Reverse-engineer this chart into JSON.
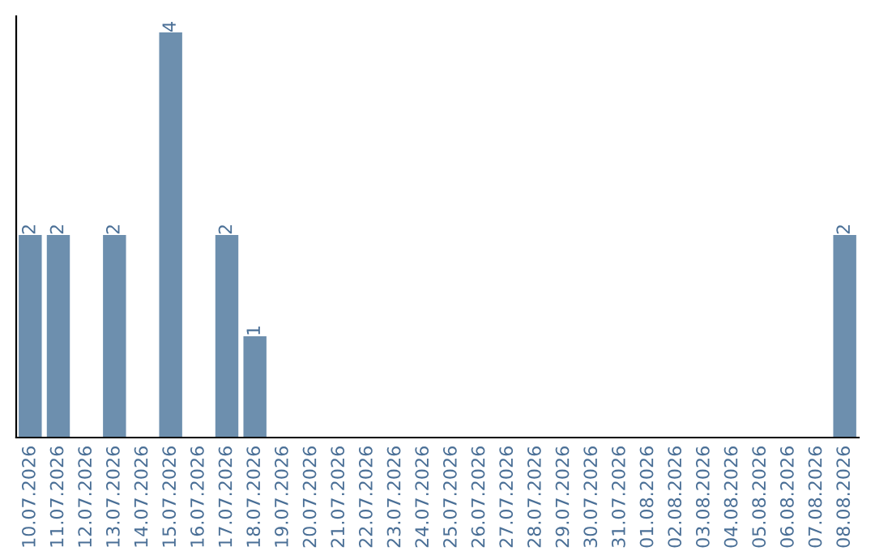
{
  "chart_data": {
    "type": "bar",
    "categories": [
      "10.07.2026",
      "11.07.2026",
      "12.07.2026",
      "13.07.2026",
      "14.07.2026",
      "15.07.2026",
      "16.07.2026",
      "17.07.2026",
      "18.07.2026",
      "19.07.2026",
      "20.07.2026",
      "21.07.2026",
      "22.07.2026",
      "23.07.2026",
      "24.07.2026",
      "25.07.2026",
      "26.07.2026",
      "27.07.2026",
      "28.07.2026",
      "29.07.2026",
      "30.07.2026",
      "31.07.2026",
      "01.08.2026",
      "02.08.2026",
      "03.08.2026",
      "04.08.2026",
      "05.08.2026",
      "06.08.2026",
      "07.08.2026",
      "08.08.2026"
    ],
    "values": [
      2,
      2,
      0,
      2,
      0,
      4,
      0,
      2,
      1,
      0,
      0,
      0,
      0,
      0,
      0,
      0,
      0,
      0,
      0,
      0,
      0,
      0,
      0,
      0,
      0,
      0,
      0,
      0,
      0,
      2
    ],
    "value_labels": [
      "2",
      "2",
      null,
      "2",
      null,
      "4",
      null,
      "2",
      "1",
      null,
      null,
      null,
      null,
      null,
      null,
      null,
      null,
      null,
      null,
      null,
      null,
      null,
      null,
      null,
      null,
      null,
      null,
      null,
      null,
      "2"
    ],
    "color": "#6d8fae",
    "grid": false,
    "legend": false,
    "tick_labels": "x"
  }
}
